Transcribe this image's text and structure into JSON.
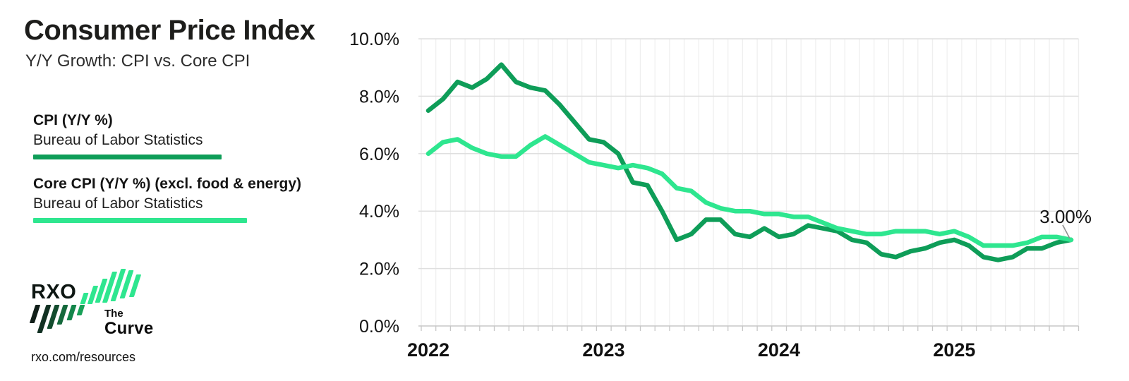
{
  "header": {
    "title": "Consumer Price Index",
    "subtitle": "Y/Y Growth: CPI vs. Core CPI"
  },
  "legend": {
    "items": [
      {
        "label": "CPI (Y/Y %)",
        "source": "Bureau of Labor Statistics",
        "color": "#0E9D58"
      },
      {
        "label": "Core CPI (Y/Y %) (excl. food & energy)",
        "source": "Bureau of Labor Statistics",
        "color": "#2EE68F"
      }
    ]
  },
  "branding": {
    "logo_text": "RXO",
    "tagline_line1": "The",
    "tagline_line2": "Curve",
    "url": "rxo.com/resources",
    "rxo_stripe_colors": [
      "#111f19",
      "#123123",
      "#134c2e",
      "#15693c",
      "#13854a",
      "#18a057"
    ],
    "curve_stripe_color": "#2EE68F"
  },
  "chart_data": {
    "type": "line",
    "title": "Consumer Price Index",
    "subtitle": "Y/Y Growth: CPI vs. Core CPI",
    "x_start": "2022-01",
    "x_end": "2025-09",
    "x_interval": "monthly",
    "grid": true,
    "legend_position": "left",
    "y_axis": {
      "min": 0,
      "max": 10,
      "tick_values": [
        0,
        2,
        4,
        6,
        8,
        10
      ],
      "tick_labels": [
        "0.0%",
        "2.0%",
        "4.0%",
        "6.0%",
        "8.0%",
        "10.0%"
      ]
    },
    "x_axis": {
      "years": [
        {
          "label": "2022",
          "month_index": 0
        },
        {
          "label": "2023",
          "month_index": 12
        },
        {
          "label": "2024",
          "month_index": 24
        },
        {
          "label": "2025",
          "month_index": 36
        }
      ]
    },
    "series": [
      {
        "name": "CPI (Y/Y %)",
        "source": "Bureau of Labor Statistics",
        "color": "#0E9D58",
        "values": [
          7.5,
          7.9,
          8.5,
          8.3,
          8.6,
          9.1,
          8.5,
          8.3,
          8.2,
          7.7,
          7.1,
          6.5,
          6.4,
          6.0,
          5.0,
          4.9,
          4.0,
          3.0,
          3.2,
          3.7,
          3.7,
          3.2,
          3.1,
          3.4,
          3.1,
          3.2,
          3.5,
          3.4,
          3.3,
          3.0,
          2.9,
          2.5,
          2.4,
          2.6,
          2.7,
          2.9,
          3.0,
          2.8,
          2.4,
          2.3,
          2.4,
          2.7,
          2.7,
          2.9,
          3.0
        ]
      },
      {
        "name": "Core CPI (Y/Y %) (excl. food & energy)",
        "source": "Bureau of Labor Statistics",
        "color": "#2EE68F",
        "values": [
          6.0,
          6.4,
          6.5,
          6.2,
          6.0,
          5.9,
          5.9,
          6.3,
          6.6,
          6.3,
          6.0,
          5.7,
          5.6,
          5.5,
          5.6,
          5.5,
          5.3,
          4.8,
          4.7,
          4.3,
          4.1,
          4.0,
          4.0,
          3.9,
          3.9,
          3.8,
          3.8,
          3.6,
          3.4,
          3.3,
          3.2,
          3.2,
          3.3,
          3.3,
          3.3,
          3.2,
          3.3,
          3.1,
          2.8,
          2.8,
          2.8,
          2.9,
          3.1,
          3.1,
          3.0
        ]
      }
    ],
    "annotation": {
      "text": "3.00%",
      "attached_to": "last point (Sep 2025)"
    }
  }
}
